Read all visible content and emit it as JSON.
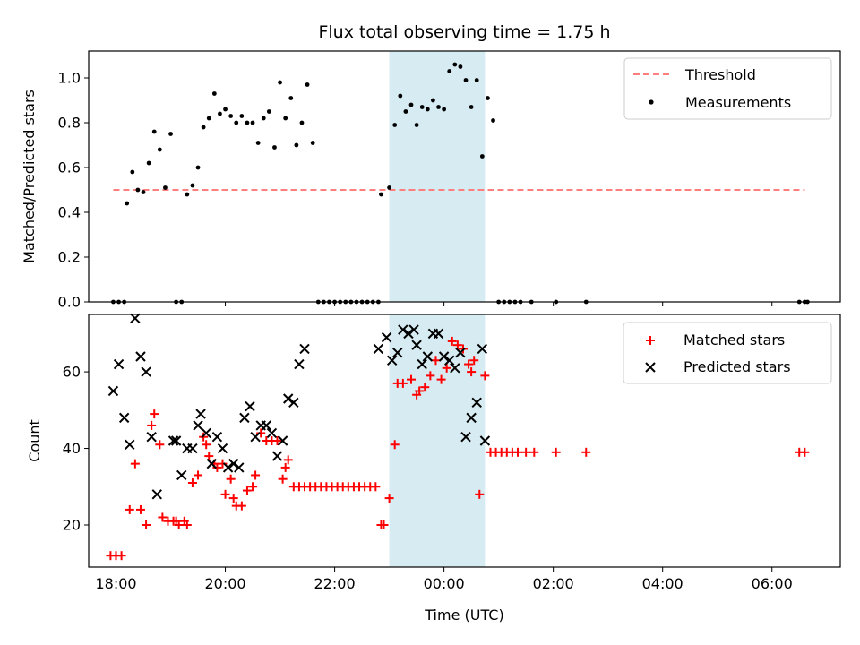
{
  "chart_data": {
    "title": "Flux total observing time = 1.75 h",
    "xlabel": "Time (UTC)",
    "x_unit": "hours relative to 00:00 UTC",
    "xlim": [
      -6.5,
      7.25
    ],
    "x_ticks": [
      {
        "value": -6,
        "label": "18:00"
      },
      {
        "value": -4,
        "label": "20:00"
      },
      {
        "value": -2,
        "label": "22:00"
      },
      {
        "value": 0,
        "label": "00:00"
      },
      {
        "value": 2,
        "label": "02:00"
      },
      {
        "value": 4,
        "label": "04:00"
      },
      {
        "value": 6,
        "label": "06:00"
      }
    ],
    "highlight_span": {
      "x0": -1.0,
      "x1": 0.75,
      "color": "#add8e6"
    },
    "panels": [
      {
        "name": "ratio",
        "type": "scatter",
        "ylabel": "Matched/Predicted stars",
        "ylim": [
          0,
          1.12
        ],
        "y_ticks": [
          0.0,
          0.2,
          0.4,
          0.6,
          0.8,
          1.0
        ],
        "y_tick_labels": [
          "0.0",
          "0.2",
          "0.4",
          "0.6",
          "0.8",
          "1.0"
        ],
        "legend": {
          "placement": "top-right",
          "entries": [
            "Threshold",
            "Measurements"
          ]
        },
        "threshold": {
          "label": "Threshold",
          "value": 0.5,
          "x0": -6.05,
          "x1": 6.6,
          "color": "#ff7f7f"
        },
        "measurements": {
          "label": "Measurements",
          "color": "#000000",
          "x": [
            -6.05,
            -5.95,
            -5.85,
            -5.8,
            -5.7,
            -5.6,
            -5.5,
            -5.4,
            -5.3,
            -5.2,
            -5.1,
            -5.0,
            -4.9,
            -4.8,
            -4.7,
            -4.6,
            -4.5,
            -4.4,
            -4.3,
            -4.2,
            -4.1,
            -4.0,
            -3.9,
            -3.8,
            -3.7,
            -3.6,
            -3.5,
            -3.4,
            -3.3,
            -3.2,
            -3.1,
            -3.0,
            -2.9,
            -2.8,
            -2.7,
            -2.6,
            -2.5,
            -2.4,
            -2.3,
            -2.2,
            -2.1,
            -2.0,
            -1.9,
            -1.8,
            -1.7,
            -1.6,
            -1.5,
            -1.4,
            -1.3,
            -1.2,
            -1.15,
            -1.0,
            -0.9,
            -0.8,
            -0.7,
            -0.6,
            -0.5,
            -0.4,
            -0.3,
            -0.2,
            -0.1,
            0.0,
            0.1,
            0.2,
            0.3,
            0.4,
            0.5,
            0.6,
            0.7,
            0.8,
            0.9,
            1.0,
            1.1,
            1.2,
            1.3,
            1.4,
            1.6,
            2.05,
            2.6,
            6.5,
            6.6,
            6.65
          ],
          "y": [
            0.0,
            0.0,
            0.0,
            0.44,
            0.58,
            0.5,
            0.49,
            0.62,
            0.76,
            0.68,
            0.51,
            0.75,
            0.0,
            0.0,
            0.48,
            0.52,
            0.6,
            0.78,
            0.82,
            0.93,
            0.84,
            0.86,
            0.83,
            0.8,
            0.83,
            0.8,
            0.8,
            0.71,
            0.82,
            0.85,
            0.69,
            0.98,
            0.82,
            0.91,
            0.7,
            0.8,
            0.97,
            0.71,
            0.0,
            0.0,
            0.0,
            0.0,
            0.0,
            0.0,
            0.0,
            0.0,
            0.0,
            0.0,
            0.0,
            0.0,
            0.48,
            0.51,
            0.79,
            0.92,
            0.85,
            0.88,
            0.79,
            0.87,
            0.86,
            0.9,
            0.87,
            0.86,
            1.03,
            1.06,
            1.05,
            0.99,
            0.87,
            0.99,
            0.65,
            0.91,
            0.81,
            0.0,
            0.0,
            0.0,
            0.0,
            0.0,
            0.0,
            0.0,
            0.0,
            0.0,
            0.0,
            0.0
          ]
        }
      },
      {
        "name": "counts",
        "type": "scatter",
        "ylabel": "Count",
        "ylim": [
          9,
          75
        ],
        "y_ticks": [
          20,
          40,
          60
        ],
        "y_tick_labels": [
          "20",
          "40",
          "60"
        ],
        "legend": {
          "placement": "top-right",
          "entries": [
            "Matched stars",
            "Predicted stars"
          ]
        },
        "series": [
          {
            "name": "Matched stars",
            "marker": "+",
            "color": "#ff0000",
            "x": [
              -6.1,
              -6.0,
              -5.9,
              -5.75,
              -5.65,
              -5.55,
              -5.45,
              -5.35,
              -5.3,
              -5.2,
              -5.15,
              -5.05,
              -4.95,
              -4.9,
              -4.85,
              -4.75,
              -4.7,
              -4.6,
              -4.5,
              -4.4,
              -4.35,
              -4.3,
              -4.2,
              -4.15,
              -4.05,
              -4.0,
              -3.9,
              -3.85,
              -3.8,
              -3.7,
              -3.6,
              -3.5,
              -3.45,
              -3.35,
              -3.25,
              -3.15,
              -3.05,
              -2.95,
              -2.9,
              -2.85,
              -2.75,
              -2.65,
              -2.55,
              -2.45,
              -2.35,
              -2.25,
              -2.15,
              -2.05,
              -1.95,
              -1.85,
              -1.75,
              -1.65,
              -1.55,
              -1.45,
              -1.35,
              -1.25,
              -1.15,
              -1.1,
              -1.0,
              -0.9,
              -0.85,
              -0.75,
              -0.6,
              -0.5,
              -0.45,
              -0.35,
              -0.25,
              -0.15,
              -0.05,
              0.05,
              0.15,
              0.25,
              0.35,
              0.45,
              0.5,
              0.55,
              0.65,
              0.75,
              0.85,
              0.95,
              1.05,
              1.15,
              1.25,
              1.35,
              1.5,
              1.65,
              2.05,
              2.6,
              6.5,
              6.6
            ],
            "y": [
              12,
              12,
              12,
              24,
              36,
              24,
              20,
              46,
              49,
              41,
              22,
              21,
              21,
              21,
              20,
              21,
              20,
              31,
              33,
              43,
              41,
              38,
              36,
              35,
              36,
              28,
              32,
              27,
              25,
              25,
              29,
              30,
              33,
              44,
              42,
              42,
              42,
              32,
              35,
              37,
              30,
              30,
              30,
              30,
              30,
              30,
              30,
              30,
              30,
              30,
              30,
              30,
              30,
              30,
              30,
              30,
              20,
              20,
              27,
              41,
              57,
              57,
              58,
              54,
              55,
              56,
              59,
              63,
              58,
              61,
              68,
              67,
              66,
              62,
              60,
              63,
              28,
              59,
              39,
              39,
              39,
              39,
              39,
              39,
              39,
              39,
              39,
              39,
              39,
              39
            ]
          },
          {
            "name": "Predicted stars",
            "marker": "x",
            "color": "#000000",
            "x": [
              -6.05,
              -5.95,
              -5.85,
              -5.75,
              -5.65,
              -5.55,
              -5.45,
              -5.35,
              -5.25,
              -4.95,
              -4.9,
              -4.8,
              -4.7,
              -4.6,
              -4.5,
              -4.45,
              -4.35,
              -4.25,
              -4.15,
              -4.05,
              -3.95,
              -3.85,
              -3.75,
              -3.65,
              -3.55,
              -3.45,
              -3.35,
              -3.25,
              -3.15,
              -3.05,
              -2.95,
              -2.85,
              -2.75,
              -2.65,
              -2.55,
              -1.2,
              -1.05,
              -0.95,
              -0.85,
              -0.75,
              -0.65,
              -0.55,
              -0.5,
              -0.4,
              -0.3,
              -0.2,
              -0.1,
              0.0,
              0.1,
              0.2,
              0.3,
              0.4,
              0.5,
              0.6,
              0.7,
              0.75
            ],
            "y": [
              55,
              62,
              48,
              41,
              74,
              64,
              60,
              43,
              28,
              42,
              42,
              33,
              40,
              40,
              46,
              49,
              44,
              36,
              43,
              40,
              35,
              36,
              35,
              48,
              51,
              43,
              46,
              46,
              44,
              38,
              42,
              53,
              52,
              62,
              66,
              66,
              69,
              63,
              65,
              71,
              70,
              71,
              67,
              62,
              64,
              70,
              70,
              64,
              63,
              61,
              65,
              43,
              48,
              52,
              66,
              42
            ]
          }
        ]
      }
    ]
  }
}
